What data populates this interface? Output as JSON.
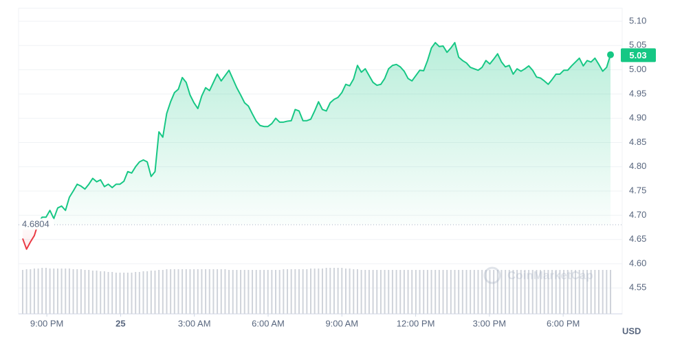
{
  "chart_data": {
    "type": "line",
    "x": [
      1201,
      1210.5,
      1220,
      1229.5,
      1239,
      1248.5,
      1258,
      1267.5,
      1277,
      1286.5,
      1296,
      1305.5,
      1315,
      1324.5,
      1334,
      1343.5,
      1353,
      1362.5,
      1372,
      1381.5,
      1391,
      1400.5,
      1410,
      1419.5,
      1429,
      1438.5,
      1448,
      1457.5,
      1467,
      1476.5,
      1486,
      1495.5,
      1505,
      1514.5,
      1524,
      1533.5,
      1543,
      1552.5,
      1562,
      1571.5,
      1581,
      1590.5,
      1600,
      1609.5,
      1619,
      1628.5,
      1638,
      1647.5,
      1657,
      1666.5,
      1676,
      1685.5,
      1695,
      1704.5,
      1714,
      1723.5,
      1733,
      1742.5,
      1752,
      1761.5,
      1771,
      1780.5,
      1790,
      1799.5,
      1809,
      1818.5,
      1828,
      1837.5,
      1847,
      1856.5,
      1866,
      1875.5,
      1885,
      1894.5,
      1904,
      1913.5,
      1923,
      1932.5,
      1942,
      1951.5,
      1961,
      1970.5,
      1980,
      1989.5,
      1999,
      2008.5,
      2018,
      2027.5,
      2037,
      2046.5,
      2056,
      2065.5,
      2075,
      2084.5,
      2094,
      2103.5,
      2113,
      2122.5,
      2132,
      2141.5,
      2151,
      2160.5,
      2170,
      2179.5,
      2189,
      2198.5,
      2208,
      2217.5,
      2227,
      2236.5,
      2246,
      2255.5,
      2265,
      2274.5,
      2284,
      2293.5,
      2303,
      2312.5,
      2322,
      2331.5,
      2341,
      2350.5,
      2360,
      2369.5,
      2379,
      2388.5,
      2398,
      2407.5,
      2417,
      2426.5,
      2436,
      2445.5,
      2455,
      2464.5,
      2474,
      2483.5,
      2493,
      2502.5,
      2512,
      2521.5,
      2531,
      2540.5,
      2550,
      2559.5,
      2569,
      2578.5,
      2588,
      2597.5,
      2607,
      2616.5,
      2626,
      2635.5
    ],
    "values": [
      4.652,
      4.63,
      4.645,
      4.658,
      4.684,
      4.696,
      4.696,
      4.71,
      4.693,
      4.715,
      4.719,
      4.71,
      4.737,
      4.75,
      4.764,
      4.76,
      4.754,
      4.764,
      4.776,
      4.769,
      4.773,
      4.759,
      4.764,
      4.757,
      4.764,
      4.764,
      4.77,
      4.79,
      4.787,
      4.8,
      4.81,
      4.814,
      4.81,
      4.78,
      4.79,
      4.872,
      4.861,
      4.91,
      4.934,
      4.953,
      4.96,
      4.984,
      4.974,
      4.948,
      4.932,
      4.92,
      4.946,
      4.963,
      4.957,
      4.974,
      4.991,
      4.977,
      4.988,
      4.999,
      4.981,
      4.963,
      4.948,
      4.932,
      4.925,
      4.909,
      4.894,
      4.885,
      4.883,
      4.883,
      4.889,
      4.9,
      4.892,
      4.892,
      4.894,
      4.895,
      4.918,
      4.915,
      4.895,
      4.895,
      4.898,
      4.915,
      4.934,
      4.918,
      4.915,
      4.932,
      4.939,
      4.943,
      4.953,
      4.97,
      4.967,
      4.981,
      5.009,
      4.995,
      5.002,
      4.988,
      4.974,
      4.968,
      4.97,
      4.982,
      5.002,
      5.009,
      5.011,
      5.006,
      4.997,
      4.982,
      4.977,
      4.988,
      4.999,
      4.998,
      5.019,
      5.045,
      5.056,
      5.048,
      5.049,
      5.036,
      5.045,
      5.056,
      5.026,
      5.019,
      5.014,
      5.005,
      5.002,
      4.999,
      5.005,
      5.019,
      5.012,
      5.022,
      5.033,
      5.016,
      5.006,
      5.009,
      4.991,
      5.002,
      4.997,
      5.002,
      5.008,
      4.999,
      4.985,
      4.983,
      4.977,
      4.97,
      4.98,
      4.991,
      4.991,
      4.999,
      4.999,
      5.008,
      5.016,
      5.024,
      5.008,
      5.019,
      5.016,
      5.024,
      5.011,
      4.997,
      5.005,
      5.031
    ],
    "volume": [
      64,
      65,
      65,
      66,
      66,
      67,
      67,
      66,
      66,
      66,
      66,
      66,
      66,
      65,
      65,
      65,
      64,
      64,
      63,
      63,
      62,
      62,
      61,
      61,
      60,
      60,
      60,
      60,
      60,
      61,
      61,
      62,
      62,
      63,
      63,
      64,
      64,
      65,
      65,
      65,
      65,
      65,
      65,
      65,
      65,
      65,
      65,
      65,
      65,
      65,
      65,
      65,
      65,
      64,
      64,
      64,
      64,
      64,
      64,
      64,
      64,
      64,
      64,
      64,
      64,
      64,
      64,
      65,
      65,
      65,
      65,
      65,
      65,
      65,
      66,
      66,
      66,
      66,
      67,
      67,
      67,
      67,
      67,
      66,
      66,
      65,
      65,
      64,
      64,
      64,
      64,
      64,
      64,
      64,
      64,
      64,
      64,
      64,
      64,
      64,
      64,
      64,
      64,
      64,
      64,
      64,
      64,
      64,
      64,
      64,
      64,
      64,
      64,
      64,
      64,
      64,
      64,
      64,
      64,
      64,
      64,
      64,
      64,
      64,
      64,
      64,
      64,
      64,
      64,
      64,
      64,
      64,
      64,
      64,
      64,
      64,
      64,
      64,
      64,
      64,
      64,
      64,
      64,
      64,
      64,
      64,
      64,
      64,
      64,
      64,
      64,
      64
    ],
    "color": "#16c784",
    "below_color": "#ea3943",
    "volume_color": "#cfd3da",
    "baseline": 4.6804,
    "current_value": 5.03,
    "xlim": [
      1191,
      2664
    ],
    "ylim": [
      4.4966,
      5.1269
    ],
    "xticks": [
      {
        "value": 1260,
        "label": "9:00 PM"
      },
      {
        "value": 1440,
        "label": "25"
      },
      {
        "value": 1620,
        "label": "3:00 AM"
      },
      {
        "value": 1800,
        "label": "6:00 AM"
      },
      {
        "value": 1980,
        "label": "9:00 AM"
      },
      {
        "value": 2160,
        "label": "12:00 PM"
      },
      {
        "value": 2340,
        "label": "3:00 PM"
      },
      {
        "value": 2520,
        "label": "6:00 PM"
      }
    ],
    "yticks": [
      4.55,
      {
        "value": 4.6,
        "label": "4.60"
      },
      4.65,
      {
        "value": 4.7,
        "label": "4.70"
      },
      4.75,
      {
        "value": 4.8,
        "label": "4.80"
      },
      4.85,
      {
        "value": 4.9,
        "label": "4.90"
      },
      4.95,
      {
        "value": 5.0,
        "label": "5.00"
      },
      5.05,
      {
        "value": 5.1,
        "label": "5.10"
      }
    ],
    "grid": true,
    "y_unit": "USD",
    "watermark": "CoinMarketCap"
  }
}
